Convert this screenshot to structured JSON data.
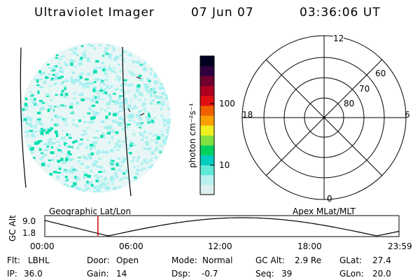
{
  "header": {
    "title": "Ultraviolet Imager",
    "date": "07 Jun 07",
    "time": "03:36:06 UT"
  },
  "image_panel": {
    "label": "Geographic Lat/Lon",
    "colors": {
      "speckle_a": "#00e0b0",
      "speckle_b": "#a8f0f0",
      "speckle_c": "#e8f6f6",
      "border": "#000000"
    }
  },
  "colorbar": {
    "unit_label": "photon cm⁻²s⁻¹",
    "ticks": [
      "10",
      "100"
    ],
    "colors": [
      "#ddefef",
      "#b8f0ee",
      "#60e8d8",
      "#00ccc0",
      "#00d060",
      "#80e040",
      "#f0f020",
      "#f8a000",
      "#f06000",
      "#e01010",
      "#b00020",
      "#700030",
      "#300040",
      "#000020"
    ]
  },
  "polar_plot": {
    "label": "Apex MLat/MLT",
    "mlt_labels": {
      "top": "12",
      "left": "18",
      "right": "6",
      "bottom": "0"
    },
    "lat_labels": [
      "60",
      "70",
      "80"
    ]
  },
  "timeline": {
    "ylabel": "GC Alt",
    "yticks": [
      "9.0",
      "1.8"
    ],
    "xticks": [
      "00:00",
      "06:00",
      "12:00",
      "18:00",
      "23:59"
    ],
    "marker_time_hours": 3.6,
    "marker_color": "#cc0000"
  },
  "info": {
    "flt_label": "Flt:",
    "flt_value": "LBHL",
    "door_label": "Door:",
    "door_value": "Open",
    "mode_label": "Mode:",
    "mode_value": "Normal",
    "gcalt_label": "GC Alt:",
    "gcalt_value": "2.9 Re",
    "glat_label": "GLat:",
    "glat_value": "27.4",
    "ip_label": "IP:",
    "ip_value": "36.0",
    "gain_label": "Gain:",
    "gain_value": "14",
    "dsp_label": "Dsp:",
    "dsp_value": "-0.7",
    "seq_label": "Seq:",
    "seq_value": "39",
    "glon_label": "GLon:",
    "glon_value": "20.0"
  }
}
